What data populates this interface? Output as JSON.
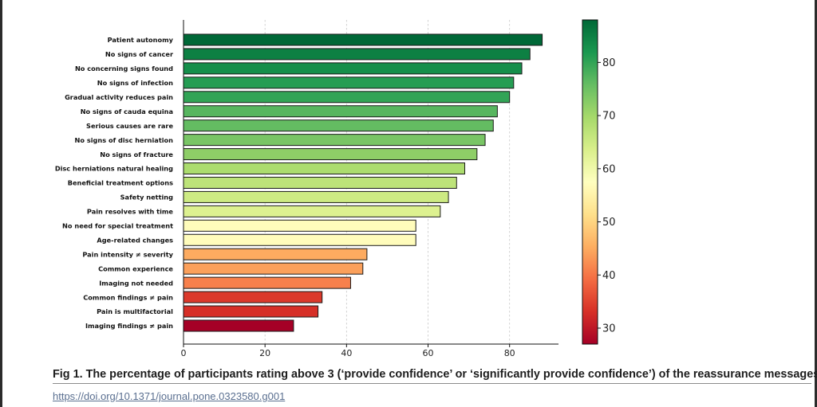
{
  "chart_data": {
    "type": "bar",
    "orientation": "horizontal",
    "categories": [
      "Patient autonomy",
      "No signs of cancer",
      "No concerning signs found",
      "No signs of infection",
      "Gradual activity reduces pain",
      "No signs of cauda equina",
      "Serious causes are rare",
      "No signs of disc herniation",
      "No signs of fracture",
      "Disc herniations natural healing",
      "Beneficial treatment options",
      "Safety netting",
      "Pain resolves with time",
      "No need for special treatment",
      "Age-related changes",
      "Pain intensity ≠ severity",
      "Common experience",
      "Imaging not needed",
      "Common findings ≠ pain",
      "Pain is multifactorial",
      "Imaging findings ≠ pain"
    ],
    "values": [
      88,
      85,
      83,
      81,
      80,
      77,
      76,
      74,
      72,
      69,
      67,
      65,
      63,
      57,
      57,
      45,
      44,
      41,
      34,
      33,
      27
    ],
    "xlim": [
      0,
      92
    ],
    "xticks": [
      0,
      20,
      40,
      60,
      80
    ],
    "grid": "vertical dashed",
    "title": "",
    "xlabel": "",
    "ylabel": "",
    "colorbar": {
      "colormap": "RdYlGn",
      "range": [
        27,
        88
      ],
      "ticks": [
        30,
        40,
        50,
        60,
        70,
        80
      ],
      "placement": "right"
    }
  },
  "caption": "Fig 1.  The percentage of participants rating above 3 (‘provide confidence’ or ‘significantly provide confidence’) of the reassurance messages.",
  "doi_link": "https://doi.org/10.1371/journal.pone.0323580.g001"
}
